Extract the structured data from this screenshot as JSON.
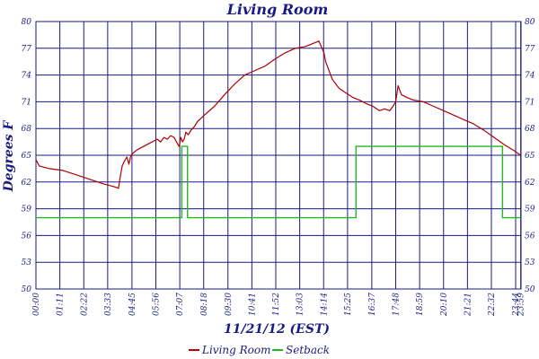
{
  "chart_data": {
    "type": "line",
    "title": "Living Room",
    "xlabel": "11/21/12 (EST)",
    "ylabel": "Degrees F",
    "ylim": [
      50,
      80
    ],
    "xlim_minutes": [
      0,
      1440
    ],
    "y_ticks": [
      "50",
      "53",
      "56",
      "59",
      "62",
      "65",
      "68",
      "71",
      "74",
      "77",
      "80"
    ],
    "x_ticks": [
      {
        "m": 0,
        "label": "00:00"
      },
      {
        "m": 71,
        "label": "01:11"
      },
      {
        "m": 142,
        "label": "02:22"
      },
      {
        "m": 213,
        "label": "03:33"
      },
      {
        "m": 285,
        "label": "04:45"
      },
      {
        "m": 356,
        "label": "05:56"
      },
      {
        "m": 427,
        "label": "07:07"
      },
      {
        "m": 498,
        "label": "08:18"
      },
      {
        "m": 570,
        "label": "09:30"
      },
      {
        "m": 641,
        "label": "10:41"
      },
      {
        "m": 712,
        "label": "11:52"
      },
      {
        "m": 783,
        "label": "13:03"
      },
      {
        "m": 854,
        "label": "14:14"
      },
      {
        "m": 925,
        "label": "15:25"
      },
      {
        "m": 997,
        "label": "16:37"
      },
      {
        "m": 1068,
        "label": "17:48"
      },
      {
        "m": 1139,
        "label": "18:59"
      },
      {
        "m": 1210,
        "label": "20:10"
      },
      {
        "m": 1281,
        "label": "21:21"
      },
      {
        "m": 1352,
        "label": "22:32"
      },
      {
        "m": 1424,
        "label": "23:44"
      },
      {
        "m": 1439,
        "label": "23:59"
      }
    ],
    "grid": true,
    "legend_position": "bottom",
    "series": [
      {
        "name": "Living Room",
        "color": "#b00000",
        "x_minutes": [
          0,
          10,
          40,
          80,
          120,
          160,
          200,
          230,
          245,
          250,
          256,
          262,
          270,
          276,
          282,
          290,
          300,
          310,
          320,
          330,
          340,
          350,
          360,
          370,
          380,
          390,
          400,
          410,
          420,
          425,
          430,
          435,
          440,
          445,
          452,
          460,
          470,
          480,
          500,
          530,
          560,
          590,
          620,
          650,
          680,
          710,
          740,
          770,
          800,
          820,
          840,
          855,
          860,
          870,
          880,
          890,
          900,
          920,
          940,
          960,
          980,
          1000,
          1020,
          1035,
          1050,
          1060,
          1068,
          1075,
          1085,
          1100,
          1120,
          1150,
          1180,
          1210,
          1240,
          1270,
          1300,
          1330,
          1360,
          1390,
          1420,
          1439
        ],
        "values": [
          64.5,
          63.8,
          63.5,
          63.3,
          62.8,
          62.3,
          61.8,
          61.5,
          61.3,
          62.5,
          63.8,
          64.3,
          64.8,
          64.0,
          65.0,
          65.3,
          65.6,
          65.8,
          66.0,
          66.2,
          66.4,
          66.6,
          66.8,
          66.5,
          67.0,
          66.8,
          67.2,
          67.0,
          66.3,
          66.0,
          67.0,
          66.5,
          66.8,
          67.6,
          67.3,
          67.8,
          68.2,
          68.8,
          69.5,
          70.5,
          71.8,
          73.0,
          74.0,
          74.5,
          75.0,
          75.8,
          76.5,
          77.0,
          77.2,
          77.5,
          77.8,
          76.5,
          75.5,
          74.5,
          73.5,
          73.0,
          72.5,
          72.0,
          71.5,
          71.2,
          70.8,
          70.5,
          70.0,
          70.2,
          70.0,
          70.5,
          71.0,
          72.8,
          71.8,
          71.5,
          71.2,
          71.0,
          70.5,
          70.0,
          69.5,
          69.0,
          68.5,
          67.8,
          67.0,
          66.2,
          65.5,
          65.0
        ]
      },
      {
        "name": "Setback",
        "color": "#22b822",
        "x_minutes": [
          0,
          433,
          433,
          450,
          450,
          950,
          950,
          1385,
          1385,
          1439
        ],
        "values": [
          58,
          58,
          66,
          66,
          58,
          58,
          66,
          66,
          58,
          58
        ]
      }
    ]
  }
}
